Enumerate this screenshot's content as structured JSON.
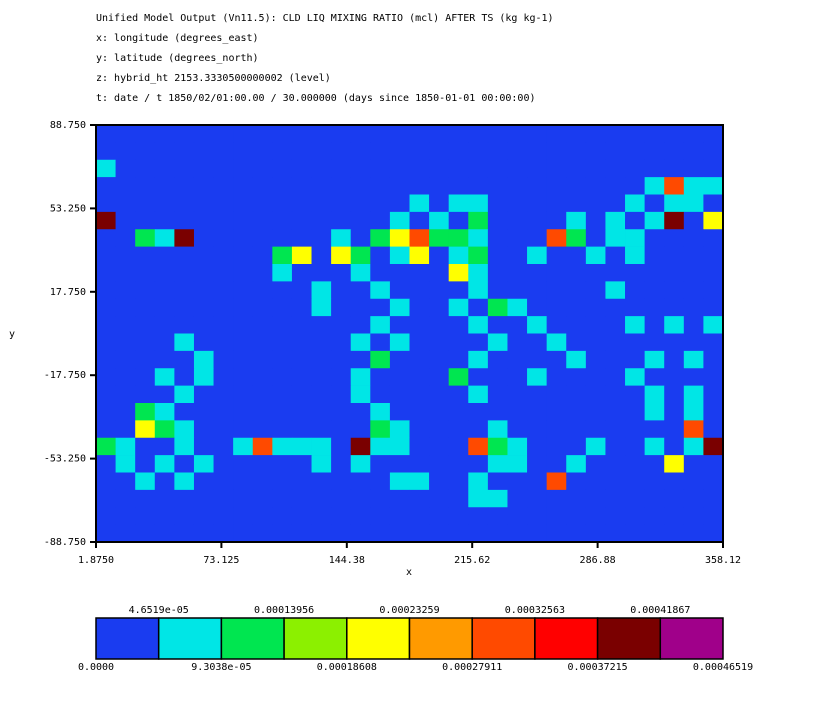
{
  "chart_data": {
    "type": "heatmap",
    "title": "Unified Model Output (Vn11.5): CLD LIQ MIXING RATIO (mcl) AFTER TS (kg kg-1)",
    "subtitles": [
      "x: longitude  (degrees_east)",
      "y: latitude  (degrees_north)",
      "z: hybrid_ht 2153.3330500000002 (level)",
      "t: date / t 1850/02/01:00.00 / 30.000000 (days since 1850-01-01 00:00:00)"
    ],
    "x_label": "x",
    "y_label": "y",
    "xlim": [
      1.875,
      358.12
    ],
    "ylim": [
      -88.75,
      88.75
    ],
    "xticks": [
      {
        "value": 1.875,
        "label": "1.8750"
      },
      73.125,
      144.38,
      215.62,
      286.88,
      358.12
    ],
    "yticks": [
      {
        "value": 88.75,
        "label": "88.750"
      },
      {
        "value": 53.25,
        "label": "53.250"
      },
      {
        "value": 17.75,
        "label": "17.750"
      },
      {
        "value": -17.75,
        "label": "-17.750"
      },
      {
        "value": -53.25,
        "label": "-53.250"
      },
      {
        "value": -88.75,
        "label": "-88.750"
      }
    ],
    "colors": [
      "#1a3cf0",
      "#00e6e6",
      "#00e650",
      "#8cf000",
      "#ffff00",
      "#ff9a00",
      "#ff4a00",
      "#ff0000",
      "#7a0000",
      "#a0008a"
    ],
    "levels": [
      {
        "value": 0,
        "label": "0.0000"
      },
      {
        "value": 4.6519e-05,
        "label": "4.6519e-05"
      },
      {
        "value": 9.3038e-05,
        "label": "9.3038e-05"
      },
      0.00013956,
      0.00018608,
      0.00023259,
      0.00027911,
      0.00032563,
      0.00037215,
      0.00041867,
      0.00046519
    ],
    "z": [
      [
        0,
        0,
        0,
        0,
        0,
        0,
        0,
        0,
        0,
        0,
        0,
        0,
        0,
        0,
        0,
        0,
        0,
        0,
        0,
        0,
        0,
        0,
        0,
        0,
        0,
        0,
        0,
        0,
        0,
        0,
        0,
        0
      ],
      [
        0,
        0,
        0,
        0,
        0,
        0,
        0,
        0,
        0,
        0,
        0,
        0,
        0,
        0,
        0,
        0,
        0,
        0,
        0,
        0,
        0,
        0,
        0,
        0,
        0,
        0,
        0,
        0,
        0,
        0,
        0,
        0
      ],
      [
        6e-05,
        0,
        0,
        0,
        0,
        0,
        0,
        0,
        0,
        0,
        0,
        0,
        0,
        0,
        0,
        0,
        0,
        0,
        0,
        0,
        0,
        0,
        0,
        0,
        0,
        0,
        0,
        0,
        0,
        0,
        0,
        0
      ],
      [
        0,
        0,
        0,
        0,
        0,
        0,
        0,
        0,
        0,
        0,
        0,
        0,
        0,
        0,
        0,
        0,
        0,
        0,
        0,
        0,
        0,
        0,
        0,
        0,
        0,
        0,
        0,
        0,
        6e-05,
        0.0003,
        6e-05,
        6e-05
      ],
      [
        0,
        0,
        0,
        0,
        0,
        0,
        0,
        0,
        0,
        0,
        0,
        0,
        0,
        0,
        0,
        0,
        6e-05,
        0,
        6e-05,
        6e-05,
        0,
        0,
        0,
        0,
        0,
        0,
        0,
        6e-05,
        0,
        6e-05,
        6e-05,
        0
      ],
      [
        0.0004,
        0,
        0,
        0,
        0,
        0,
        0,
        0,
        0,
        0,
        0,
        0,
        0,
        0,
        0,
        6e-05,
        0,
        6e-05,
        0,
        0.00012,
        0,
        0,
        0,
        0,
        6e-05,
        0,
        6e-05,
        0,
        6e-05,
        0.0004,
        0,
        0.0002
      ],
      [
        0,
        0,
        0.00012,
        6e-05,
        0.0004,
        0,
        0,
        0,
        0,
        0,
        0,
        0,
        6e-05,
        0,
        0.00012,
        0.0002,
        0.0003,
        0.00012,
        0.00012,
        6e-05,
        0,
        0,
        0,
        0.0003,
        0.00012,
        0,
        6e-05,
        6e-05,
        0,
        0,
        0,
        0
      ],
      [
        0,
        0,
        0,
        0,
        0,
        0,
        0,
        0,
        0,
        0.00012,
        0.0002,
        0,
        0.0002,
        0.00012,
        0,
        6e-05,
        0.0002,
        0,
        6e-05,
        0.00012,
        0,
        0,
        6e-05,
        0,
        0,
        6e-05,
        0,
        6e-05,
        0,
        0,
        0,
        0
      ],
      [
        0,
        0,
        0,
        0,
        0,
        0,
        0,
        0,
        0,
        6e-05,
        0,
        0,
        0,
        6e-05,
        0,
        0,
        0,
        0,
        0.0002,
        6e-05,
        0,
        0,
        0,
        0,
        0,
        0,
        0,
        0,
        0,
        0,
        0,
        0
      ],
      [
        0,
        0,
        0,
        0,
        0,
        0,
        0,
        0,
        0,
        0,
        0,
        6e-05,
        0,
        0,
        6e-05,
        0,
        0,
        0,
        0,
        6e-05,
        0,
        0,
        0,
        0,
        0,
        0,
        6e-05,
        0,
        0,
        0,
        0,
        0
      ],
      [
        0,
        0,
        0,
        0,
        0,
        0,
        0,
        0,
        0,
        0,
        0,
        6e-05,
        0,
        0,
        0,
        6e-05,
        0,
        0,
        6e-05,
        0,
        0.00012,
        6e-05,
        0,
        0,
        0,
        0,
        0,
        0,
        0,
        0,
        0,
        0
      ],
      [
        0,
        0,
        0,
        0,
        0,
        0,
        0,
        0,
        0,
        0,
        0,
        0,
        0,
        0,
        6e-05,
        0,
        0,
        0,
        0,
        6e-05,
        0,
        0,
        6e-05,
        0,
        0,
        0,
        0,
        6e-05,
        0,
        6e-05,
        0,
        6e-05
      ],
      [
        0,
        0,
        0,
        0,
        6e-05,
        0,
        0,
        0,
        0,
        0,
        0,
        0,
        0,
        6e-05,
        0,
        6e-05,
        0,
        0,
        0,
        0,
        6e-05,
        0,
        0,
        6e-05,
        0,
        0,
        0,
        0,
        0,
        0,
        0,
        0
      ],
      [
        0,
        0,
        0,
        0,
        0,
        6e-05,
        0,
        0,
        0,
        0,
        0,
        0,
        0,
        0,
        0.00012,
        0,
        0,
        0,
        0,
        6e-05,
        0,
        0,
        0,
        0,
        6e-05,
        0,
        0,
        0,
        6e-05,
        0,
        6e-05,
        0
      ],
      [
        0,
        0,
        0,
        6e-05,
        0,
        6e-05,
        0,
        0,
        0,
        0,
        0,
        0,
        0,
        6e-05,
        0,
        0,
        0,
        0,
        0.00012,
        0,
        0,
        0,
        6e-05,
        0,
        0,
        0,
        0,
        6e-05,
        0,
        0,
        0,
        0
      ],
      [
        0,
        0,
        0,
        0,
        6e-05,
        0,
        0,
        0,
        0,
        0,
        0,
        0,
        0,
        6e-05,
        0,
        0,
        0,
        0,
        0,
        6e-05,
        0,
        0,
        0,
        0,
        0,
        0,
        0,
        0,
        6e-05,
        0,
        6e-05,
        0
      ],
      [
        0,
        0,
        0.00012,
        6e-05,
        0,
        0,
        0,
        0,
        0,
        0,
        0,
        0,
        0,
        0,
        6e-05,
        0,
        0,
        0,
        0,
        0,
        0,
        0,
        0,
        0,
        0,
        0,
        0,
        0,
        6e-05,
        0,
        6e-05,
        0
      ],
      [
        0,
        0,
        0.0002,
        0.00012,
        6e-05,
        0,
        0,
        0,
        0,
        0,
        0,
        0,
        0,
        0,
        0.00012,
        6e-05,
        0,
        0,
        0,
        0,
        6e-05,
        0,
        0,
        0,
        0,
        0,
        0,
        0,
        0,
        0,
        0.0003,
        0
      ],
      [
        0.00012,
        6e-05,
        0,
        0,
        6e-05,
        0,
        0,
        6e-05,
        0.0003,
        6e-05,
        6e-05,
        6e-05,
        0,
        0.0004,
        6e-05,
        6e-05,
        0,
        0,
        0,
        0.0003,
        0.00012,
        6e-05,
        0,
        0,
        0,
        6e-05,
        0,
        0,
        6e-05,
        0,
        6e-05,
        0.0004
      ],
      [
        0,
        6e-05,
        0,
        6e-05,
        0,
        6e-05,
        0,
        0,
        0,
        0,
        0,
        6e-05,
        0,
        6e-05,
        0,
        0,
        0,
        0,
        0,
        0,
        6e-05,
        6e-05,
        0,
        0,
        6e-05,
        0,
        0,
        0,
        0,
        0.0002,
        0,
        0
      ],
      [
        0,
        0,
        6e-05,
        0,
        6e-05,
        0,
        0,
        0,
        0,
        0,
        0,
        0,
        0,
        0,
        0,
        6e-05,
        6e-05,
        0,
        0,
        6e-05,
        0,
        0,
        0,
        0.0003,
        0,
        0,
        0,
        0,
        0,
        0,
        0,
        0
      ],
      [
        0,
        0,
        0,
        0,
        0,
        0,
        0,
        0,
        0,
        0,
        0,
        0,
        0,
        0,
        0,
        0,
        0,
        0,
        0,
        6e-05,
        6e-05,
        0,
        0,
        0,
        0,
        0,
        0,
        0,
        0,
        0,
        0,
        0
      ],
      [
        0,
        0,
        0,
        0,
        0,
        0,
        0,
        0,
        0,
        0,
        0,
        0,
        0,
        0,
        0,
        0,
        0,
        0,
        0,
        0,
        0,
        0,
        0,
        0,
        0,
        0,
        0,
        0,
        0,
        0,
        0,
        0
      ],
      [
        0,
        0,
        0,
        0,
        0,
        0,
        0,
        0,
        0,
        0,
        0,
        0,
        0,
        0,
        0,
        0,
        0,
        0,
        0,
        0,
        0,
        0,
        0,
        0,
        0,
        0,
        0,
        0,
        0,
        0,
        0,
        0
      ]
    ]
  }
}
